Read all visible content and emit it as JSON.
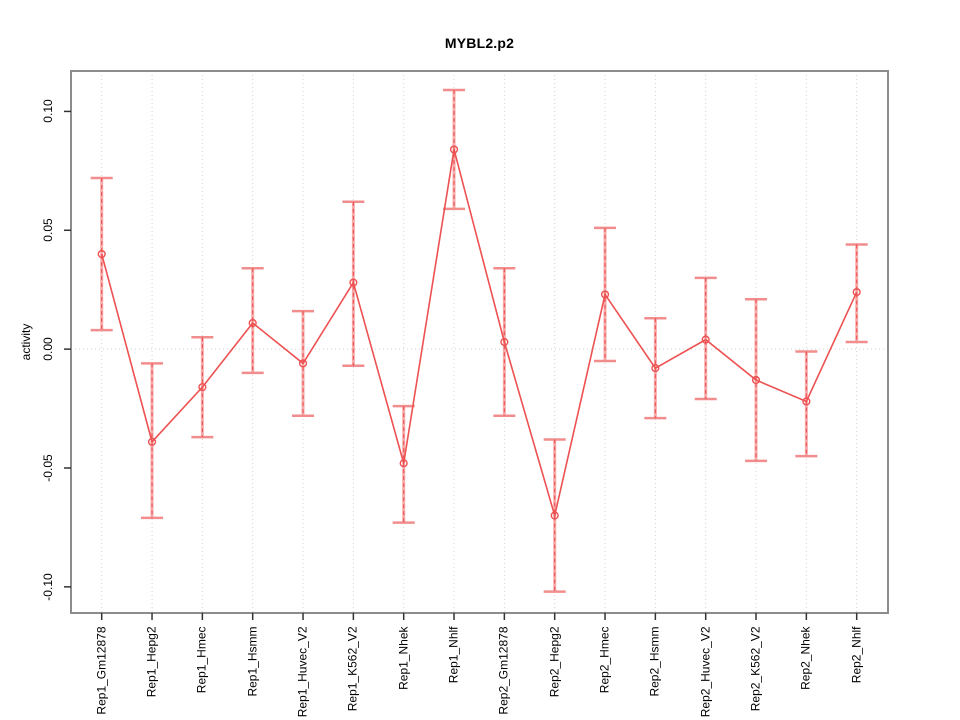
{
  "figure": {
    "title": "MYBL2.p2",
    "ylabel": "activity"
  },
  "chart_data": {
    "type": "scatter",
    "title": "MYBL2.p2",
    "xlabel": "",
    "ylabel": "activity",
    "legend": "none",
    "marker": "open-circle",
    "error_bars": true,
    "categories": [
      "Rep1_Gm12878",
      "Rep1_Hepg2",
      "Rep1_Hmec",
      "Rep1_Hsmm",
      "Rep1_Huvec_V2",
      "Rep1_K562_V2",
      "Rep1_Nhek",
      "Rep1_Nhlf",
      "Rep2_Gm12878",
      "Rep2_Hepg2",
      "Rep2_Hmec",
      "Rep2_Hsmm",
      "Rep2_Huvec_V2",
      "Rep2_K562_V2",
      "Rep2_Nhek",
      "Rep2_Nhlf"
    ],
    "series": [
      {
        "name": "activity",
        "values": [
          0.04,
          -0.039,
          -0.016,
          0.011,
          -0.006,
          0.028,
          -0.048,
          0.084,
          0.003,
          -0.07,
          0.023,
          -0.008,
          0.004,
          -0.013,
          -0.022,
          0.024
        ],
        "ci_low": [
          0.008,
          -0.071,
          -0.037,
          -0.01,
          -0.028,
          -0.007,
          -0.073,
          0.059,
          -0.028,
          -0.102,
          -0.005,
          -0.029,
          -0.021,
          -0.047,
          -0.045,
          0.003
        ],
        "ci_high": [
          0.072,
          -0.006,
          0.005,
          0.034,
          0.016,
          0.062,
          -0.024,
          0.109,
          0.034,
          -0.038,
          0.051,
          0.013,
          0.03,
          0.021,
          -0.001,
          0.044
        ]
      }
    ],
    "yticks": [
      {
        "label": "0.10",
        "value": 0.1
      },
      {
        "label": "0.05",
        "value": 0.05
      },
      {
        "label": "0.00",
        "value": 0.0
      },
      {
        "label": "-0.05",
        "value": -0.05
      },
      {
        "label": "-0.10",
        "value": -0.1
      }
    ],
    "ylim": [
      -0.111,
      0.117
    ],
    "grid": {
      "vertical": "dotted line at each category",
      "horizontal": "dotted line at zero only"
    },
    "colors": {
      "line": "#ed5151",
      "error_band": "#f7abab",
      "cap": "#f28d8d",
      "grid": "#d2d2d2",
      "frame": "#8c8c8c",
      "tick": "#333333",
      "text": "#000000",
      "background": "#ffffff"
    }
  }
}
